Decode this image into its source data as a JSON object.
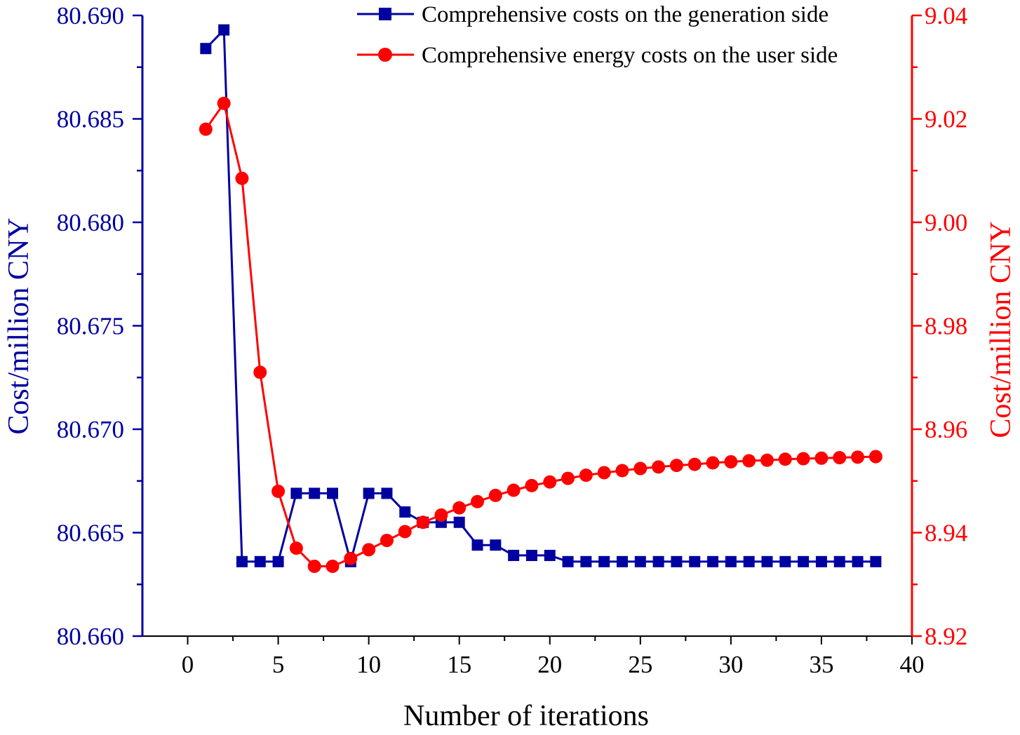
{
  "chart_data": {
    "type": "line",
    "x": [
      1,
      2,
      3,
      4,
      5,
      6,
      7,
      8,
      9,
      10,
      11,
      12,
      13,
      14,
      15,
      16,
      17,
      18,
      19,
      20,
      21,
      22,
      23,
      24,
      25,
      26,
      27,
      28,
      29,
      30,
      31,
      32,
      33,
      34,
      35,
      36,
      37,
      38
    ],
    "series": [
      {
        "name": "Comprehensive costs on the generation side",
        "axis": "left",
        "color": "#0000a0",
        "marker": "square",
        "values": [
          80.6884,
          80.6893,
          80.6636,
          80.6636,
          80.6636,
          80.6669,
          80.6669,
          80.6669,
          80.6636,
          80.6669,
          80.6669,
          80.666,
          80.6655,
          80.6655,
          80.6655,
          80.6644,
          80.6644,
          80.6639,
          80.6639,
          80.6639,
          80.6636,
          80.6636,
          80.6636,
          80.6636,
          80.6636,
          80.6636,
          80.6636,
          80.6636,
          80.6636,
          80.6636,
          80.6636,
          80.6636,
          80.6636,
          80.6636,
          80.6636,
          80.6636,
          80.6636,
          80.6636
        ]
      },
      {
        "name": "Comprehensive energy costs on the user side",
        "axis": "right",
        "color": "#ff0000",
        "marker": "circle",
        "values": [
          9.018,
          9.023,
          9.0085,
          8.971,
          8.948,
          8.937,
          8.9335,
          8.9335,
          8.935,
          8.9367,
          8.9385,
          8.9402,
          8.942,
          8.9434,
          8.9448,
          8.946,
          8.9472,
          8.9482,
          8.9491,
          8.9498,
          8.9505,
          8.9511,
          8.9516,
          8.952,
          8.9524,
          8.9527,
          8.953,
          8.9532,
          8.9535,
          8.9537,
          8.9539,
          8.954,
          8.9542,
          8.9543,
          8.9544,
          8.9545,
          8.9546,
          8.9547
        ]
      }
    ],
    "xlabel": "Number of iterations",
    "ylabel_left": "Cost/million CNY",
    "ylabel_right": "Cost/million CNY",
    "xlim": [
      -2.5,
      40
    ],
    "ylim_left": [
      80.66,
      80.69
    ],
    "ylim_right": [
      8.92,
      9.04
    ],
    "x_ticks": [
      "0",
      "5",
      "10",
      "15",
      "20",
      "25",
      "30",
      "35",
      "40"
    ],
    "y_ticks_left": [
      "80.660",
      "80.665",
      "80.670",
      "80.675",
      "80.680",
      "80.685",
      "80.690"
    ],
    "y_ticks_right": [
      "8.92",
      "8.94",
      "8.96",
      "8.98",
      "9.00",
      "9.02",
      "9.04"
    ],
    "grid": false,
    "legend_position": "top-right"
  }
}
